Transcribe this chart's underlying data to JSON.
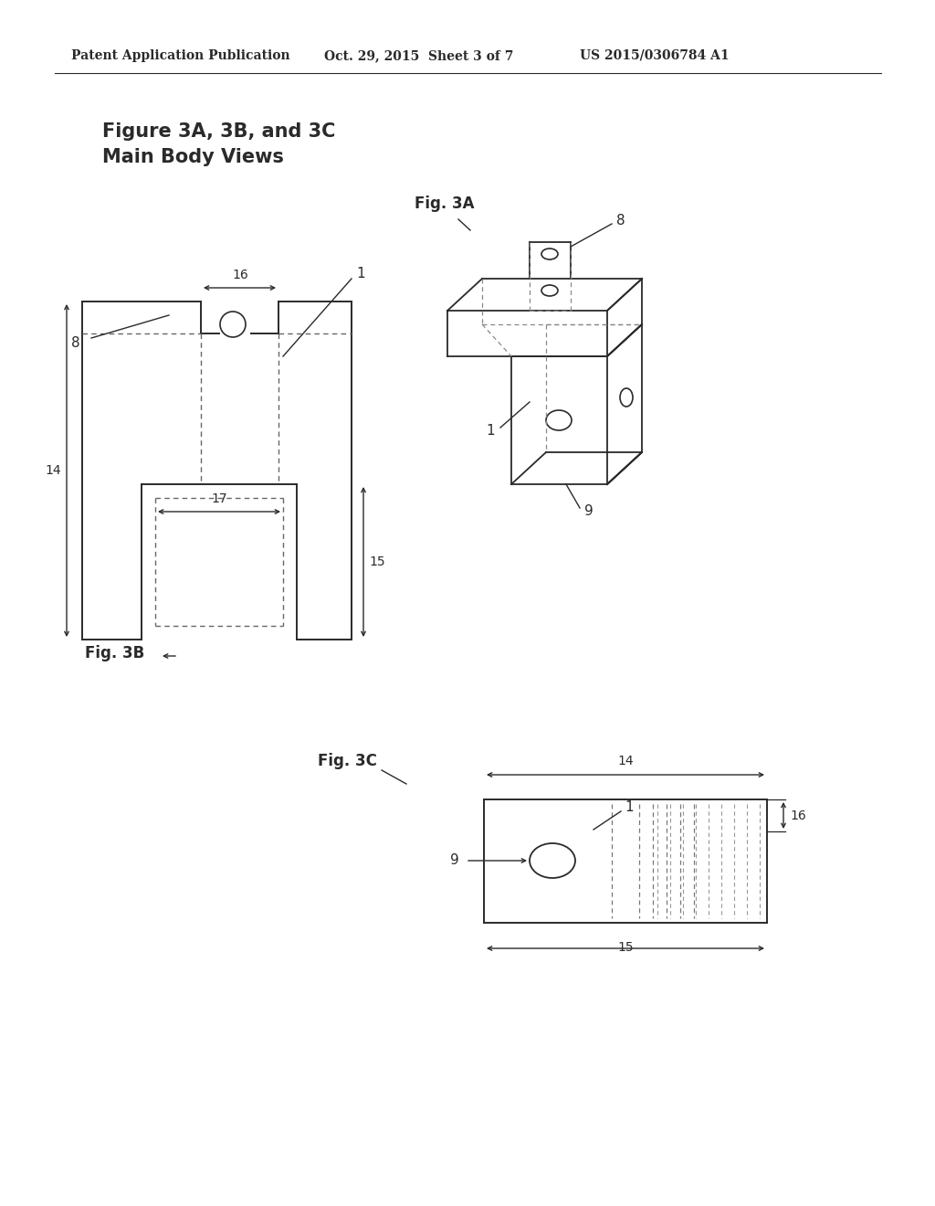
{
  "bg_color": "#ffffff",
  "header_text": "Patent Application Publication",
  "header_date": "Oct. 29, 2015  Sheet 3 of 7",
  "header_patent": "US 2015/0306784 A1",
  "title_line1": "Figure 3A, 3B, and 3C",
  "title_line2": "Main Body Views",
  "fig3a_label": "Fig. 3A",
  "fig3b_label": "Fig. 3B",
  "fig3c_label": "Fig. 3C",
  "line_color": "#2a2a2a",
  "dashed_color": "#555555"
}
